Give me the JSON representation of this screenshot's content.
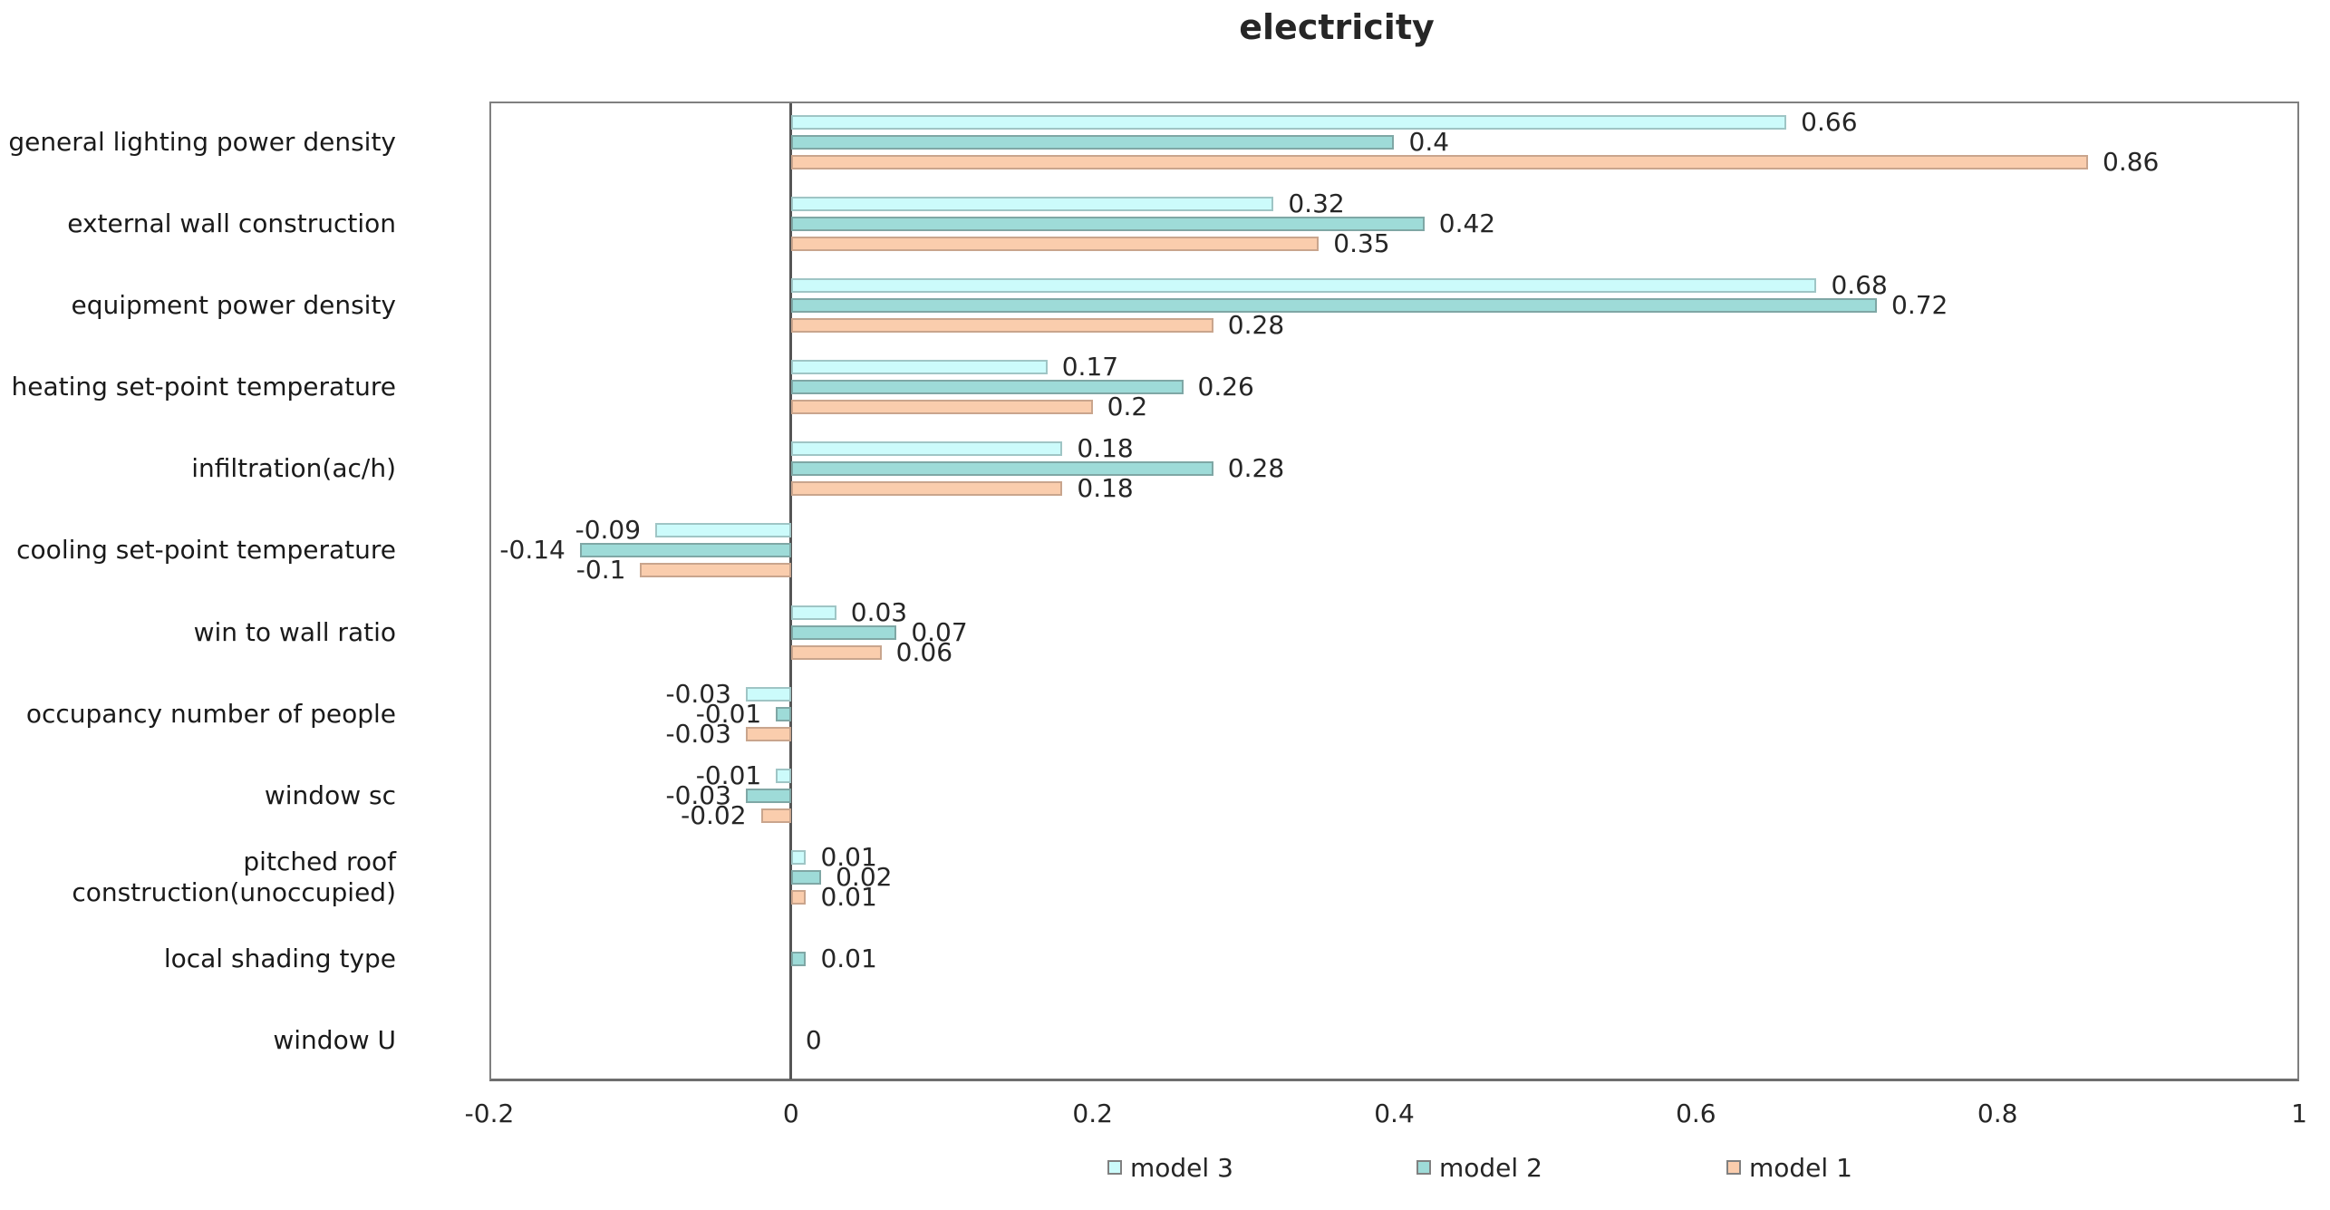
{
  "chart_data": {
    "type": "bar",
    "orientation": "horizontal",
    "title": "electricity",
    "categories": [
      "general lighting power density",
      "external wall construction",
      "equipment power density",
      "heating set-point temperature",
      "infiltration(ac/h)",
      "cooling set-point temperature",
      "win to wall ratio",
      "occupancy number of people",
      "window sc",
      "pitched roof\nconstruction(unoccupied)",
      "local shading type",
      "window U"
    ],
    "xlim": [
      -0.2,
      1
    ],
    "xticks": [
      {
        "value": -0.2,
        "label": "-0.2"
      },
      {
        "value": 0,
        "label": "0"
      },
      {
        "value": 0.2,
        "label": "0.2"
      },
      {
        "value": 0.4,
        "label": "0.4"
      },
      {
        "value": 0.6,
        "label": "0.6"
      },
      {
        "value": 0.8,
        "label": "0.8"
      },
      {
        "value": 1,
        "label": "1"
      }
    ],
    "grid": false,
    "legend_position": "bottom-center",
    "series": [
      {
        "name": "model 3",
        "color": "#ccfbfb",
        "border_color": "#9fc5c5",
        "values": [
          0.66,
          0.32,
          0.68,
          0.17,
          0.18,
          -0.09,
          0.03,
          -0.03,
          -0.01,
          0.01,
          null,
          null
        ],
        "labels": [
          "0.66",
          "0.32",
          "0.68",
          "0.17",
          "0.18",
          "-0.09",
          "0.03",
          "-0.03",
          "-0.01",
          "0.01",
          null,
          null
        ]
      },
      {
        "name": "model 2",
        "color": "#9edbd8",
        "border_color": "#7fa7a5",
        "values": [
          0.4,
          0.42,
          0.72,
          0.26,
          0.28,
          -0.14,
          0.07,
          -0.01,
          -0.03,
          0.02,
          0.01,
          0
        ],
        "labels": [
          "0.4",
          "0.42",
          "0.72",
          "0.26",
          "0.28",
          "-0.14",
          "0.07",
          "-0.01",
          "-0.03",
          "0.02",
          "0.01",
          "0"
        ]
      },
      {
        "name": "model 1",
        "color": "#facdad",
        "border_color": "#c9a58d",
        "values": [
          0.86,
          0.35,
          0.28,
          0.2,
          0.18,
          -0.1,
          0.06,
          -0.03,
          -0.02,
          0.01,
          null,
          null
        ],
        "labels": [
          "0.86",
          "0.35",
          "0.28",
          "0.2",
          "0.18",
          "-0.1",
          "0.06",
          "-0.03",
          "-0.02",
          "0.01",
          null,
          null
        ]
      }
    ]
  }
}
